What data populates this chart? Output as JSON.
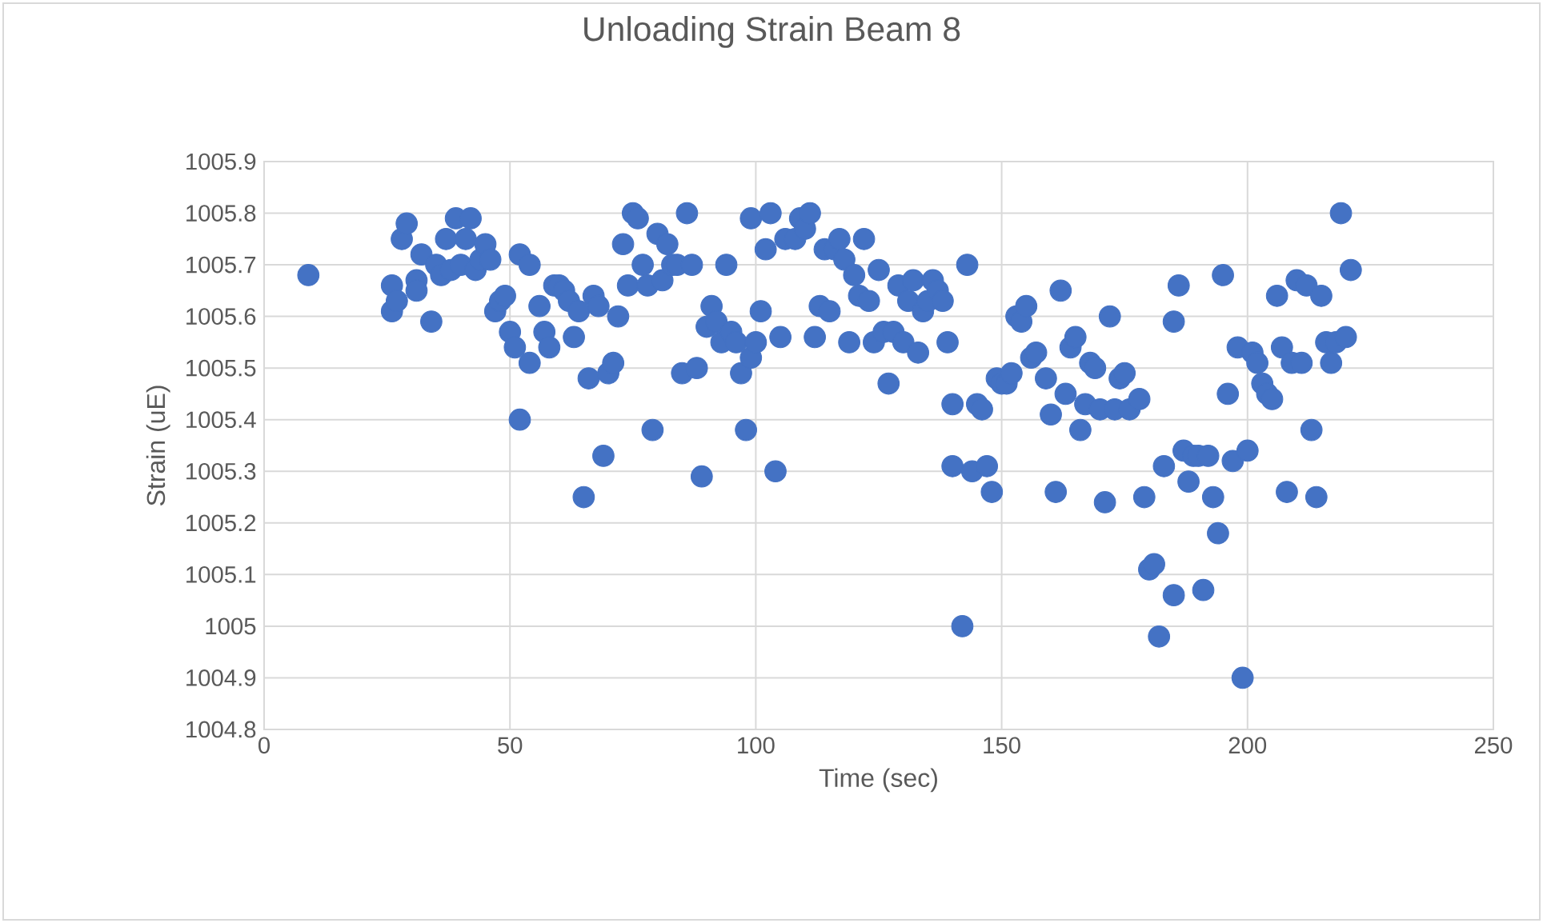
{
  "chart_data": {
    "type": "scatter",
    "title": "Unloading Strain Beam 8",
    "xlabel": "Time (sec)",
    "ylabel": "Strain (uE)",
    "xlim": [
      0,
      250
    ],
    "xticks": [
      0,
      50,
      100,
      150,
      200,
      250
    ],
    "ylim": [
      1004.8,
      1005.9
    ],
    "yticks": [
      1004.8,
      1004.9,
      1005,
      1005.1,
      1005.2,
      1005.3,
      1005.4,
      1005.5,
      1005.6,
      1005.7,
      1005.8,
      1005.9
    ],
    "grid": true,
    "marker": "circle",
    "color": "#4472c4",
    "x": [
      9,
      26,
      26,
      27,
      28,
      29,
      31,
      31,
      32,
      34,
      35,
      36,
      37,
      38,
      39,
      40,
      41,
      42,
      43,
      44,
      45,
      46,
      47,
      48,
      49,
      50,
      51,
      52,
      52,
      54,
      54,
      56,
      57,
      58,
      59,
      60,
      61,
      62,
      63,
      64,
      65,
      66,
      67,
      68,
      69,
      70,
      71,
      72,
      73,
      74,
      75,
      76,
      77,
      78,
      79,
      80,
      81,
      82,
      83,
      84,
      85,
      86,
      87,
      88,
      89,
      90,
      91,
      92,
      93,
      94,
      95,
      96,
      97,
      98,
      99,
      99,
      100,
      101,
      102,
      103,
      104,
      105,
      106,
      108,
      109,
      110,
      111,
      112,
      113,
      114,
      115,
      116,
      117,
      118,
      119,
      120,
      121,
      122,
      123,
      124,
      125,
      126,
      127,
      128,
      129,
      130,
      131,
      132,
      133,
      134,
      135,
      136,
      137,
      138,
      139,
      140,
      140,
      142,
      143,
      144,
      145,
      146,
      147,
      148,
      149,
      150,
      151,
      152,
      153,
      154,
      155,
      156,
      157,
      159,
      160,
      161,
      162,
      163,
      164,
      165,
      166,
      167,
      168,
      169,
      170,
      171,
      172,
      173,
      174,
      175,
      176,
      178,
      179,
      180,
      181,
      182,
      183,
      185,
      185,
      186,
      187,
      188,
      189,
      190,
      191,
      192,
      193,
      194,
      195,
      196,
      197,
      198,
      199,
      200,
      201,
      202,
      203,
      204,
      205,
      206,
      207,
      208,
      209,
      210,
      211,
      212,
      213,
      214,
      215,
      216,
      217,
      218,
      219,
      220,
      221
    ],
    "values": [
      1005.68,
      1005.66,
      1005.61,
      1005.63,
      1005.75,
      1005.78,
      1005.67,
      1005.65,
      1005.72,
      1005.59,
      1005.7,
      1005.68,
      1005.75,
      1005.69,
      1005.79,
      1005.7,
      1005.75,
      1005.79,
      1005.69,
      1005.71,
      1005.74,
      1005.71,
      1005.61,
      1005.63,
      1005.64,
      1005.57,
      1005.54,
      1005.4,
      1005.72,
      1005.7,
      1005.51,
      1005.62,
      1005.57,
      1005.54,
      1005.66,
      1005.66,
      1005.65,
      1005.63,
      1005.56,
      1005.61,
      1005.25,
      1005.48,
      1005.64,
      1005.62,
      1005.33,
      1005.49,
      1005.51,
      1005.6,
      1005.74,
      1005.66,
      1005.8,
      1005.79,
      1005.7,
      1005.66,
      1005.38,
      1005.76,
      1005.67,
      1005.74,
      1005.7,
      1005.7,
      1005.49,
      1005.8,
      1005.7,
      1005.5,
      1005.29,
      1005.58,
      1005.62,
      1005.59,
      1005.55,
      1005.7,
      1005.57,
      1005.55,
      1005.49,
      1005.38,
      1005.79,
      1005.52,
      1005.55,
      1005.61,
      1005.73,
      1005.8,
      1005.3,
      1005.56,
      1005.75,
      1005.75,
      1005.79,
      1005.77,
      1005.8,
      1005.56,
      1005.62,
      1005.73,
      1005.61,
      1005.73,
      1005.75,
      1005.71,
      1005.55,
      1005.68,
      1005.64,
      1005.75,
      1005.63,
      1005.55,
      1005.69,
      1005.57,
      1005.47,
      1005.57,
      1005.66,
      1005.55,
      1005.63,
      1005.67,
      1005.53,
      1005.61,
      1005.63,
      1005.67,
      1005.65,
      1005.63,
      1005.55,
      1005.43,
      1005.31,
      1005.0,
      1005.7,
      1005.3,
      1005.43,
      1005.42,
      1005.31,
      1005.26,
      1005.48,
      1005.47,
      1005.47,
      1005.49,
      1005.6,
      1005.59,
      1005.62,
      1005.52,
      1005.53,
      1005.48,
      1005.41,
      1005.26,
      1005.65,
      1005.45,
      1005.54,
      1005.56,
      1005.38,
      1005.43,
      1005.51,
      1005.5,
      1005.42,
      1005.24,
      1005.6,
      1005.42,
      1005.48,
      1005.49,
      1005.42,
      1005.44,
      1005.25,
      1005.11,
      1005.12,
      1004.98,
      1005.31,
      1005.06,
      1005.59,
      1005.66,
      1005.34,
      1005.28,
      1005.33,
      1005.33,
      1005.07,
      1005.33,
      1005.25,
      1005.18,
      1005.68,
      1005.45,
      1005.32,
      1005.54,
      1004.9,
      1005.34,
      1005.53,
      1005.51,
      1005.47,
      1005.45,
      1005.44,
      1005.64,
      1005.54,
      1005.26,
      1005.51,
      1005.67,
      1005.51,
      1005.66,
      1005.38,
      1005.25,
      1005.64,
      1005.55,
      1005.51,
      1005.55,
      1005.8,
      1005.56,
      1005.69
    ]
  }
}
